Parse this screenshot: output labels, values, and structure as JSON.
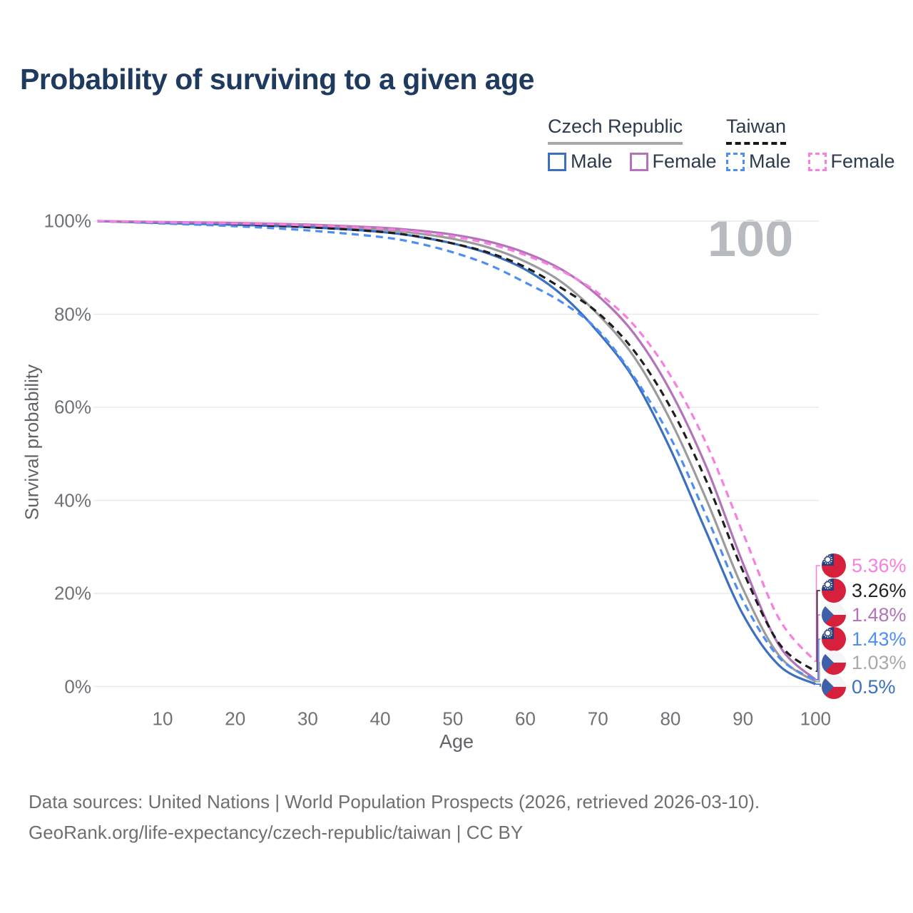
{
  "title": "Probability of surviving to a given age",
  "watermark": "100",
  "legend": {
    "groups": [
      {
        "name": "Czech Republic",
        "underline_style": "solid",
        "underline_color": "#a8a8a8",
        "items": [
          {
            "label": "Male",
            "color": "#3b70c0",
            "dash": false
          },
          {
            "label": "Female",
            "color": "#b273ba",
            "dash": false
          }
        ]
      },
      {
        "name": "Taiwan",
        "underline_style": "dashed",
        "underline_color": "#161616",
        "items": [
          {
            "label": "Male",
            "color": "#4e8ef2",
            "dash": true
          },
          {
            "label": "Female",
            "color": "#f87fe0",
            "dash": true
          }
        ]
      }
    ]
  },
  "chart_data": {
    "type": "line",
    "title": "Probability of surviving to a given age",
    "xlabel": "Age",
    "ylabel": "Survival probability",
    "x_range": [
      1,
      100
    ],
    "y_range_pct": [
      0,
      100
    ],
    "grid": true,
    "x_ticks": [
      10,
      20,
      30,
      40,
      50,
      60,
      70,
      80,
      90,
      100
    ],
    "y_ticks": [
      {
        "pct": 0,
        "label": "0%"
      },
      {
        "pct": 20,
        "label": "20%"
      },
      {
        "pct": 40,
        "label": "40%"
      },
      {
        "pct": 60,
        "label": "60%"
      },
      {
        "pct": 80,
        "label": "80%"
      },
      {
        "pct": 100,
        "label": "100%"
      }
    ],
    "ages": [
      1,
      10,
      20,
      30,
      40,
      45,
      50,
      55,
      60,
      65,
      70,
      75,
      80,
      85,
      90,
      95,
      100
    ],
    "series": [
      {
        "name": "Czech Republic Average",
        "country": "czech",
        "color": "#9b9b9b",
        "dash": false,
        "values": [
          100,
          99.7,
          99.4,
          99.0,
          98.2,
          97.4,
          96.2,
          94.3,
          91.3,
          86.9,
          80.0,
          70.8,
          57.2,
          40.0,
          21.0,
          6.6,
          1.03
        ]
      },
      {
        "name": "Czech Republic Male",
        "country": "czech",
        "color": "#3b70c0",
        "dash": false,
        "values": [
          100,
          99.6,
          99.2,
          98.7,
          97.7,
          96.7,
          95.2,
          93.0,
          89.6,
          84.2,
          76.2,
          66.0,
          51.0,
          33.0,
          15.5,
          4.5,
          0.5
        ]
      },
      {
        "name": "Czech Republic Female",
        "country": "czech",
        "color": "#b273ba",
        "dash": false,
        "values": [
          100,
          99.8,
          99.6,
          99.25,
          98.6,
          98.0,
          97.1,
          95.6,
          93.2,
          89.6,
          84.0,
          75.8,
          63.5,
          47.0,
          26.5,
          8.8,
          1.48
        ]
      },
      {
        "name": "Taiwan Average",
        "country": "taiwan",
        "color": "#1e1e1e",
        "dash": true,
        "values": [
          100,
          99.65,
          99.3,
          98.7,
          97.7,
          96.75,
          95.2,
          93.2,
          90.1,
          85.6,
          80.3,
          72.1,
          60.0,
          44.0,
          24.8,
          9.2,
          3.26
        ]
      },
      {
        "name": "Taiwan Male",
        "country": "taiwan",
        "color": "#4e8ef2",
        "dash": true,
        "values": [
          100,
          99.5,
          98.9,
          98.0,
          96.6,
          95.3,
          93.3,
          90.6,
          86.8,
          82.6,
          76.6,
          66.5,
          53.5,
          36.5,
          18.5,
          6.2,
          1.43
        ]
      },
      {
        "name": "Taiwan Female",
        "country": "taiwan",
        "color": "#f87fe0",
        "dash": true,
        "values": [
          100,
          99.75,
          99.5,
          99.1,
          98.4,
          97.7,
          96.7,
          95.1,
          92.7,
          89.3,
          84.6,
          77.6,
          66.8,
          52.0,
          33.0,
          14.5,
          5.36
        ]
      }
    ],
    "end_labels": [
      {
        "value": "5.36%",
        "series": "Taiwan Female",
        "flag": "taiwan",
        "color": "#f87fe0"
      },
      {
        "value": "3.26%",
        "series": "Taiwan Average",
        "flag": "taiwan",
        "color": "#222222"
      },
      {
        "value": "1.48%",
        "series": "Czech Republic Female",
        "flag": "czech",
        "color": "#b273ba"
      },
      {
        "value": "1.43%",
        "series": "Taiwan Male",
        "flag": "taiwan",
        "color": "#4e8ef2"
      },
      {
        "value": "1.03%",
        "series": "Czech Republic Average",
        "flag": "czech",
        "color": "#a9a9a9"
      },
      {
        "value": "0.5%",
        "series": "Czech Republic Male",
        "flag": "czech",
        "color": "#3b70c0"
      }
    ],
    "legend_position": "top-right"
  },
  "flags": {
    "taiwan": {
      "red": "#d7203c",
      "blue": "#24407e",
      "sun": "#ffffff"
    },
    "czech": {
      "white": "#f4f5f7",
      "red": "#d7203c",
      "blue": "#3f5fa8"
    }
  },
  "footer": {
    "line1": "Data sources: United Nations | World Population Prospects (2026, retrieved 2026-03-10).",
    "line2": "GeoRank.org/life-expectancy/czech-republic/taiwan | CC BY"
  }
}
